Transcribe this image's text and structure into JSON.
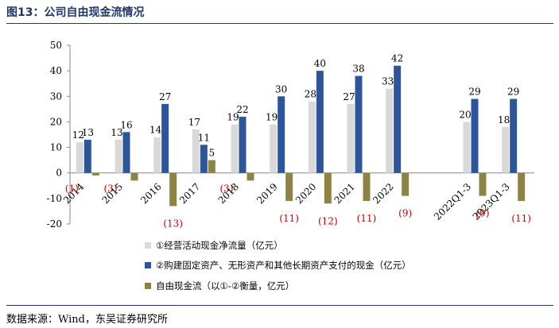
{
  "title": "图13：公司自由现金流情况",
  "source": "数据来源：Wind，东吴证券研究所",
  "colors": {
    "s1": "#d9d9d9",
    "s2": "#2e5597",
    "s3": "#8c8344",
    "neg_label": "#c00000"
  },
  "chart_data": {
    "type": "bar",
    "categories": [
      "2014",
      "2015",
      "2016",
      "2017",
      "2018",
      "2019",
      "2020",
      "2021",
      "2022",
      "",
      "2022Q1-3",
      "2023Q1-3"
    ],
    "series": [
      {
        "name": "①经营活动现金净流量（亿元）",
        "values": [
          12,
          13,
          14,
          17,
          19,
          19,
          28,
          27,
          33,
          null,
          20,
          18
        ],
        "labels": [
          "12",
          "13",
          "14",
          "17",
          "19",
          "19",
          "28",
          "27",
          "33",
          "",
          "20",
          "18"
        ]
      },
      {
        "name": "②购建固定资产、无形资产和其他长期资产支付的现金（亿元）",
        "values": [
          13,
          16,
          27,
          11,
          22,
          30,
          40,
          38,
          42,
          null,
          29,
          29
        ],
        "labels": [
          "13",
          "16",
          "27",
          "11",
          "22",
          "30",
          "40",
          "38",
          "42",
          "",
          "29",
          "29"
        ]
      },
      {
        "name": "自由现金流（以①-②衡量，亿元）",
        "values": [
          -1,
          -3,
          -13,
          5,
          -3,
          -11,
          -12,
          -11,
          -9,
          null,
          -9,
          -11
        ],
        "labels": [
          "(1)",
          "(3)",
          "(13)",
          "5",
          "(3)",
          "(11)",
          "(12)",
          "(11)",
          "(9)",
          "",
          "(9)",
          "(11)"
        ]
      }
    ],
    "ylim": [
      -20,
      50
    ],
    "yticks": [
      -20,
      -10,
      0,
      10,
      20,
      30,
      40,
      50
    ],
    "grid": false,
    "legend_position": "bottom-left"
  }
}
